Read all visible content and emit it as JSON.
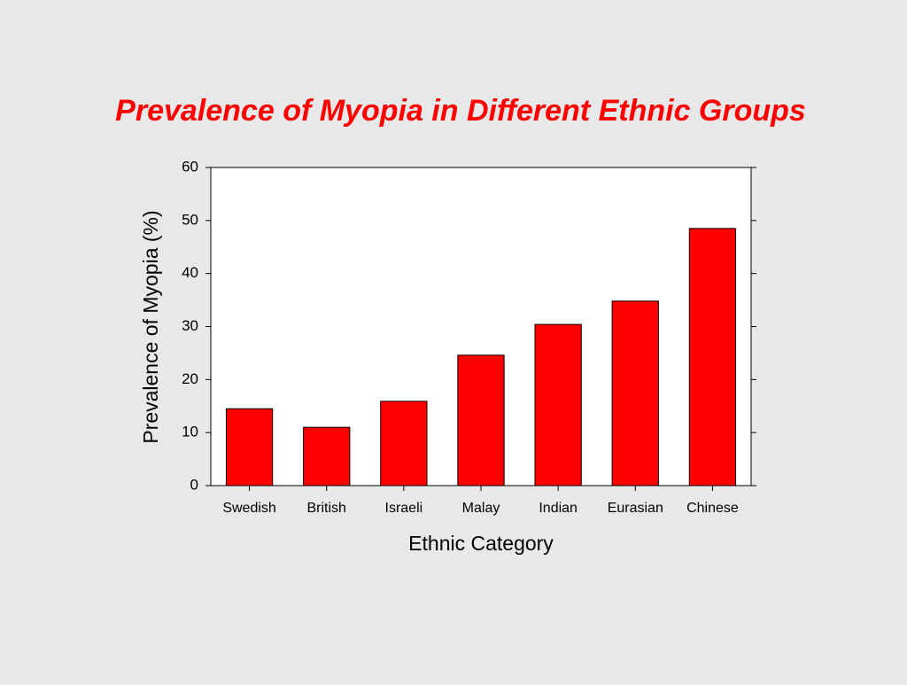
{
  "chart_data": {
    "type": "bar",
    "title": "Prevalence of Myopia in Different Ethnic Groups",
    "x_label": "Ethnic Category",
    "y_label": "Prevalence of Myopia (%)",
    "categories": [
      "Swedish",
      "British",
      "Israeli",
      "Malay",
      "Indian",
      "Eurasian",
      "Chinese"
    ],
    "values": [
      14.5,
      11.0,
      15.9,
      24.6,
      30.4,
      34.8,
      48.5
    ],
    "color": "#ff0000",
    "ylim": [
      0,
      60
    ],
    "yticks": [
      0,
      10,
      20,
      30,
      40,
      50,
      60
    ],
    "grid": false
  }
}
